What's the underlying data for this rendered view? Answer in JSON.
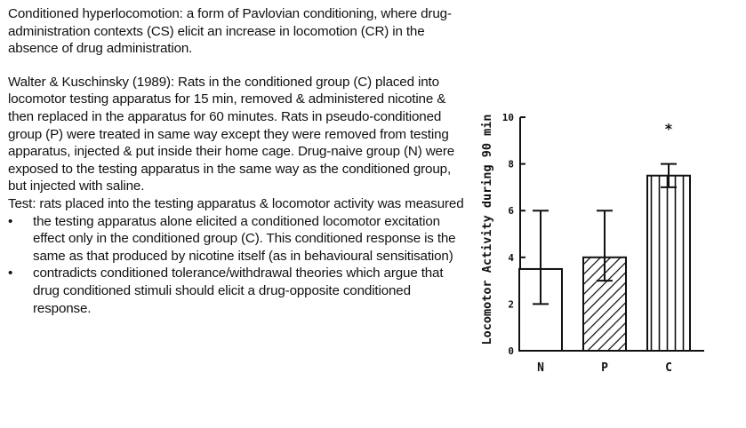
{
  "intro": {
    "definition": "Conditioned hyperlocomotion: a form of  Pavlovian conditioning, where drug-administration contexts (CS) elicit an increase in locomotion (CR) in the absence of drug administration."
  },
  "study": {
    "description": "Walter & Kuschinsky (1989):  Rats in the conditioned group (C) placed into locomotor testing apparatus for 15 min, removed & administered nicotine & then replaced in the apparatus for 60 minutes. Rats in pseudo-conditioned group (P) were treated in same way except they were removed from testing apparatus, injected & put inside their home cage.  Drug-naive group (N) were exposed to the testing apparatus in the same way as the conditioned group, but injected with saline.",
    "test": "Test: rats placed into the testing apparatus & locomotor activity was measured",
    "bullet_char": "•",
    "bullets": [
      "the testing apparatus alone elicited a conditioned locomotor excitation effect only in the conditioned group (C).  This conditioned response is the same as that produced by nicotine itself (as in behavioural sensitisation)",
      "contradicts conditioned tolerance/withdrawal theories which argue that drug conditioned stimuli should elicit a drug-opposite conditioned response."
    ]
  },
  "chart_data": {
    "type": "bar",
    "categories": [
      "N",
      "P",
      "C"
    ],
    "values": [
      3.5,
      4.0,
      7.5
    ],
    "error_low": [
      2.0,
      3.0,
      7.0
    ],
    "error_high": [
      6.0,
      6.0,
      8.0
    ],
    "fills": [
      "open",
      "hatched",
      "vertical-lines"
    ],
    "ylabel": "Locomotor Activity during 90 min",
    "ylim": [
      0,
      10
    ],
    "yticks": [
      "0",
      "2",
      "4",
      "6",
      "8",
      "10"
    ],
    "significance_marks": [
      "",
      "",
      "*"
    ],
    "grid": false
  }
}
